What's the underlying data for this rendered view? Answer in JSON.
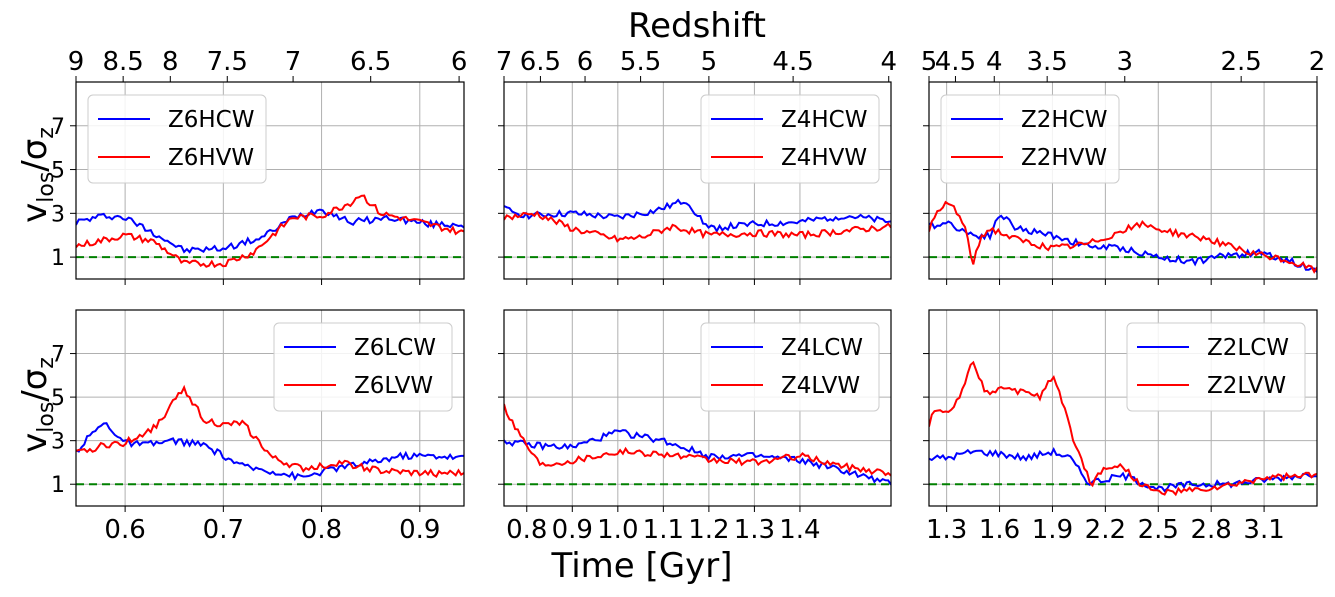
{
  "top_label": "Redshift",
  "bottom_label": "Time [Gyr]",
  "ylabel_main": "v",
  "ylabel_sub": "los",
  "ylabel_sep": "/σ",
  "ylabel_sub2": "z",
  "colors": {
    "series_a": "#0000ff",
    "series_b": "#ff0000",
    "reference": "#008000",
    "grid": "#b0b0b0"
  },
  "chart_data": [
    {
      "type": "line",
      "panel": "row1-col1",
      "xlim": [
        0.55,
        0.945
      ],
      "ylim": [
        0,
        9
      ],
      "yticks": [
        1,
        3,
        5,
        7
      ],
      "xticks": [
        0.6,
        0.7,
        0.8,
        0.9
      ],
      "xticklabels": [
        "",
        "",
        "",
        ""
      ],
      "top_ticks": [
        [
          0.55,
          "9"
        ],
        [
          0.598,
          "8.5"
        ],
        [
          0.646,
          "8"
        ],
        [
          0.704,
          "7.5"
        ],
        [
          0.771,
          "7"
        ],
        [
          0.85,
          "6.5"
        ],
        [
          0.94,
          "6"
        ]
      ],
      "reference_y": 1,
      "legend": "upper left",
      "series": [
        {
          "name": "Z6HCW",
          "color": "#0000ff",
          "x": [
            0.55,
            0.58,
            0.6,
            0.63,
            0.66,
            0.7,
            0.74,
            0.77,
            0.8,
            0.83,
            0.87,
            0.91,
            0.945
          ],
          "y": [
            2.6,
            2.9,
            2.8,
            2.1,
            1.3,
            1.4,
            1.9,
            2.8,
            3.2,
            2.6,
            2.8,
            2.5,
            2.5
          ]
        },
        {
          "name": "Z6HVW",
          "color": "#ff0000",
          "x": [
            0.55,
            0.58,
            0.6,
            0.63,
            0.66,
            0.7,
            0.73,
            0.77,
            0.8,
            0.83,
            0.84,
            0.86,
            0.9,
            0.945
          ],
          "y": [
            1.5,
            1.8,
            2.0,
            1.7,
            0.7,
            0.7,
            1.2,
            2.8,
            2.9,
            3.5,
            3.9,
            3.0,
            2.6,
            2.1
          ]
        }
      ]
    },
    {
      "type": "line",
      "panel": "row1-col2",
      "xlim": [
        0.75,
        1.6
      ],
      "ylim": [
        0,
        9
      ],
      "yticks": [
        1,
        3,
        5,
        7
      ],
      "xticks": [
        0.8,
        0.9,
        1.0,
        1.1,
        1.2,
        1.3,
        1.4
      ],
      "xticklabels": [
        "",
        "",
        "",
        "",
        "",
        "",
        ""
      ],
      "top_ticks": [
        [
          0.75,
          "7"
        ],
        [
          0.83,
          "6.5"
        ],
        [
          0.928,
          "6"
        ],
        [
          1.05,
          "5.5"
        ],
        [
          1.2,
          "5"
        ],
        [
          1.385,
          "4.5"
        ],
        [
          1.595,
          "4"
        ]
      ],
      "reference_y": 1,
      "legend": "upper right",
      "series": [
        {
          "name": "Z4HCW",
          "color": "#0000ff",
          "x": [
            0.75,
            0.8,
            0.9,
            1.0,
            1.08,
            1.15,
            1.2,
            1.3,
            1.4,
            1.5,
            1.6
          ],
          "y": [
            3.2,
            2.9,
            3.0,
            2.8,
            3.1,
            3.6,
            2.3,
            2.5,
            2.6,
            2.9,
            2.6
          ]
        },
        {
          "name": "Z4HVW",
          "color": "#ff0000",
          "x": [
            0.75,
            0.82,
            0.9,
            1.0,
            1.05,
            1.12,
            1.2,
            1.3,
            1.4,
            1.5,
            1.6
          ],
          "y": [
            2.8,
            3.0,
            2.3,
            1.8,
            1.9,
            2.4,
            2.0,
            2.1,
            2.0,
            2.2,
            2.4
          ]
        }
      ]
    },
    {
      "type": "line",
      "panel": "row1-col3",
      "xlim": [
        1.2,
        3.4
      ],
      "ylim": [
        0,
        9
      ],
      "yticks": [
        1,
        3,
        5,
        7
      ],
      "xticks": [
        1.3,
        1.6,
        1.9,
        2.2,
        2.5,
        2.8,
        3.1
      ],
      "xticklabels": [
        "",
        "",
        "",
        "",
        "",
        "",
        ""
      ],
      "top_ticks": [
        [
          1.2,
          "5"
        ],
        [
          1.35,
          "4.5"
        ],
        [
          1.57,
          "4"
        ],
        [
          1.87,
          "3.5"
        ],
        [
          2.31,
          "3"
        ],
        [
          2.97,
          "2.5"
        ],
        [
          3.4,
          "2"
        ]
      ],
      "reference_y": 1,
      "legend": "upper left",
      "series": [
        {
          "name": "Z2HCW",
          "color": "#0000ff",
          "x": [
            1.2,
            1.3,
            1.45,
            1.55,
            1.6,
            1.7,
            1.9,
            2.1,
            2.3,
            2.5,
            2.7,
            2.9,
            3.1,
            3.4
          ],
          "y": [
            2.4,
            2.6,
            2.0,
            2.0,
            3.0,
            2.3,
            2.0,
            1.5,
            1.4,
            1.0,
            0.8,
            1.1,
            1.2,
            0.4
          ]
        },
        {
          "name": "Z2HVW",
          "color": "#ff0000",
          "x": [
            1.2,
            1.25,
            1.3,
            1.35,
            1.4,
            1.45,
            1.5,
            1.55,
            1.7,
            1.9,
            2.1,
            2.4,
            2.6,
            2.8,
            3.0,
            3.2,
            3.4
          ],
          "y": [
            2.3,
            3.0,
            3.5,
            3.2,
            2.4,
            0.7,
            2.0,
            2.3,
            1.8,
            1.4,
            1.6,
            2.5,
            2.1,
            1.8,
            1.2,
            0.9,
            0.4
          ]
        }
      ]
    },
    {
      "type": "line",
      "panel": "row2-col1",
      "xlim": [
        0.55,
        0.945
      ],
      "ylim": [
        0,
        9
      ],
      "yticks": [
        1,
        3,
        5,
        7
      ],
      "xticks": [
        0.6,
        0.7,
        0.8,
        0.9
      ],
      "xticklabels": [
        "0.6",
        "0.7",
        "0.8",
        "0.9"
      ],
      "reference_y": 1,
      "legend": "upper right",
      "series": [
        {
          "name": "Z6LCW",
          "color": "#0000ff",
          "x": [
            0.55,
            0.57,
            0.58,
            0.6,
            0.62,
            0.65,
            0.68,
            0.72,
            0.75,
            0.78,
            0.81,
            0.85,
            0.88,
            0.92,
            0.945
          ],
          "y": [
            2.5,
            3.5,
            3.8,
            2.9,
            2.8,
            3.0,
            2.8,
            1.8,
            1.6,
            1.3,
            1.7,
            2.0,
            2.3,
            2.3,
            2.2
          ]
        },
        {
          "name": "Z6LVW",
          "color": "#ff0000",
          "x": [
            0.55,
            0.58,
            0.6,
            0.63,
            0.65,
            0.66,
            0.68,
            0.7,
            0.72,
            0.75,
            0.78,
            0.82,
            0.86,
            0.9,
            0.945
          ],
          "y": [
            2.4,
            2.8,
            2.9,
            3.6,
            4.8,
            5.4,
            4.0,
            3.7,
            3.8,
            2.2,
            1.7,
            2.0,
            1.6,
            1.5,
            1.5
          ]
        }
      ]
    },
    {
      "type": "line",
      "panel": "row2-col2",
      "xlim": [
        0.75,
        1.6
      ],
      "ylim": [
        0,
        9
      ],
      "yticks": [
        1,
        3,
        5,
        7
      ],
      "xticks": [
        0.8,
        0.9,
        1.0,
        1.1,
        1.2,
        1.3,
        1.4
      ],
      "xticklabels": [
        "0.8",
        "0.9",
        "1.0",
        "1.1",
        "1.2",
        "1.3",
        "1.4"
      ],
      "reference_y": 1,
      "legend": "upper right",
      "series": [
        {
          "name": "Z4LCW",
          "color": "#0000ff",
          "x": [
            0.75,
            0.8,
            0.9,
            1.0,
            1.1,
            1.2,
            1.3,
            1.4,
            1.5,
            1.6
          ],
          "y": [
            3.0,
            2.8,
            2.7,
            3.4,
            3.0,
            2.3,
            2.3,
            2.1,
            1.6,
            1.0
          ]
        },
        {
          "name": "Z4LVW",
          "color": "#ff0000",
          "x": [
            0.75,
            0.77,
            0.8,
            0.83,
            0.9,
            1.0,
            1.1,
            1.2,
            1.3,
            1.4,
            1.5,
            1.6
          ],
          "y": [
            4.6,
            3.8,
            2.8,
            1.9,
            2.1,
            2.5,
            2.4,
            2.1,
            2.0,
            2.3,
            1.8,
            1.5
          ]
        }
      ]
    },
    {
      "type": "line",
      "panel": "row2-col3",
      "xlim": [
        1.2,
        3.4
      ],
      "ylim": [
        0,
        9
      ],
      "yticks": [
        1,
        3,
        5,
        7
      ],
      "xticks": [
        1.3,
        1.6,
        1.9,
        2.2,
        2.5,
        2.8,
        3.1
      ],
      "xticklabels": [
        "1.3",
        "1.6",
        "1.9",
        "2.2",
        "2.5",
        "2.8",
        "3.1"
      ],
      "reference_y": 1,
      "legend": "upper right",
      "series": [
        {
          "name": "Z2LCW",
          "color": "#0000ff",
          "x": [
            1.2,
            1.3,
            1.45,
            1.6,
            1.75,
            1.9,
            2.0,
            2.1,
            2.2,
            2.3,
            2.5,
            2.7,
            2.9,
            3.1,
            3.4
          ],
          "y": [
            2.2,
            2.2,
            2.5,
            2.4,
            2.2,
            2.5,
            2.2,
            1.1,
            1.2,
            1.4,
            0.8,
            1.0,
            1.0,
            1.2,
            1.5
          ]
        },
        {
          "name": "Z2LVW",
          "color": "#ff0000",
          "x": [
            1.2,
            1.22,
            1.28,
            1.35,
            1.45,
            1.52,
            1.6,
            1.7,
            1.75,
            1.83,
            1.9,
            1.95,
            2.0,
            2.05,
            2.12,
            2.2,
            2.3,
            2.4,
            2.5,
            2.7,
            2.9,
            3.1,
            3.4
          ],
          "y": [
            3.6,
            4.5,
            4.2,
            4.6,
            6.7,
            5.2,
            5.4,
            5.2,
            5.3,
            5.0,
            6.0,
            5.0,
            3.5,
            2.4,
            1.0,
            1.8,
            1.8,
            1.0,
            0.6,
            0.7,
            0.9,
            1.3,
            1.4
          ]
        }
      ]
    }
  ]
}
